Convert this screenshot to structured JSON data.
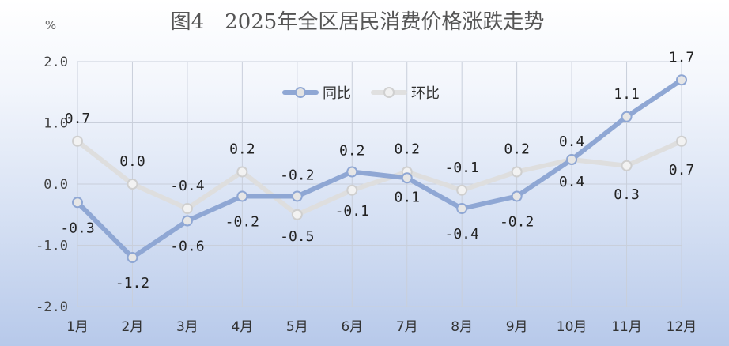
{
  "chart_data": {
    "type": "line",
    "title": "图4　2025年全区居民消费价格涨跌走势",
    "unit": "%",
    "categories": [
      "1月",
      "2月",
      "3月",
      "4月",
      "5月",
      "6月",
      "7月",
      "8月",
      "9月",
      "10月",
      "11月",
      "12月"
    ],
    "ylim": [
      -2.0,
      2.0
    ],
    "yticks": [
      "2.0",
      "1.0",
      "0.0",
      "-1.0",
      "-2.0"
    ],
    "ytick_values": [
      2.0,
      1.0,
      0.0,
      -1.0,
      -2.0
    ],
    "series": [
      {
        "name": "同比",
        "color": "#8fa7d4",
        "values": [
          -0.3,
          -1.2,
          -0.6,
          -0.2,
          -0.2,
          0.2,
          0.1,
          -0.4,
          -0.2,
          0.4,
          1.1,
          1.7
        ],
        "labels": [
          "-0.3",
          "-1.2",
          "-0.6",
          "-0.2",
          "-0.2",
          "0.2",
          "0.1",
          "-0.4",
          "-0.2",
          "0.4",
          "1.1",
          "1.7"
        ]
      },
      {
        "name": "环比",
        "color": "#dcdcdc",
        "values": [
          0.7,
          0.0,
          -0.4,
          0.2,
          -0.5,
          -0.1,
          0.2,
          -0.1,
          0.2,
          0.4,
          0.3,
          0.7
        ],
        "labels": [
          "0.7",
          "0.0",
          "-0.4",
          "0.2",
          "-0.5",
          "-0.1",
          "0.2",
          "-0.1",
          "0.2",
          "0.4",
          "0.3",
          "0.7"
        ]
      }
    ],
    "legend_position": "top-center",
    "grid": true
  }
}
